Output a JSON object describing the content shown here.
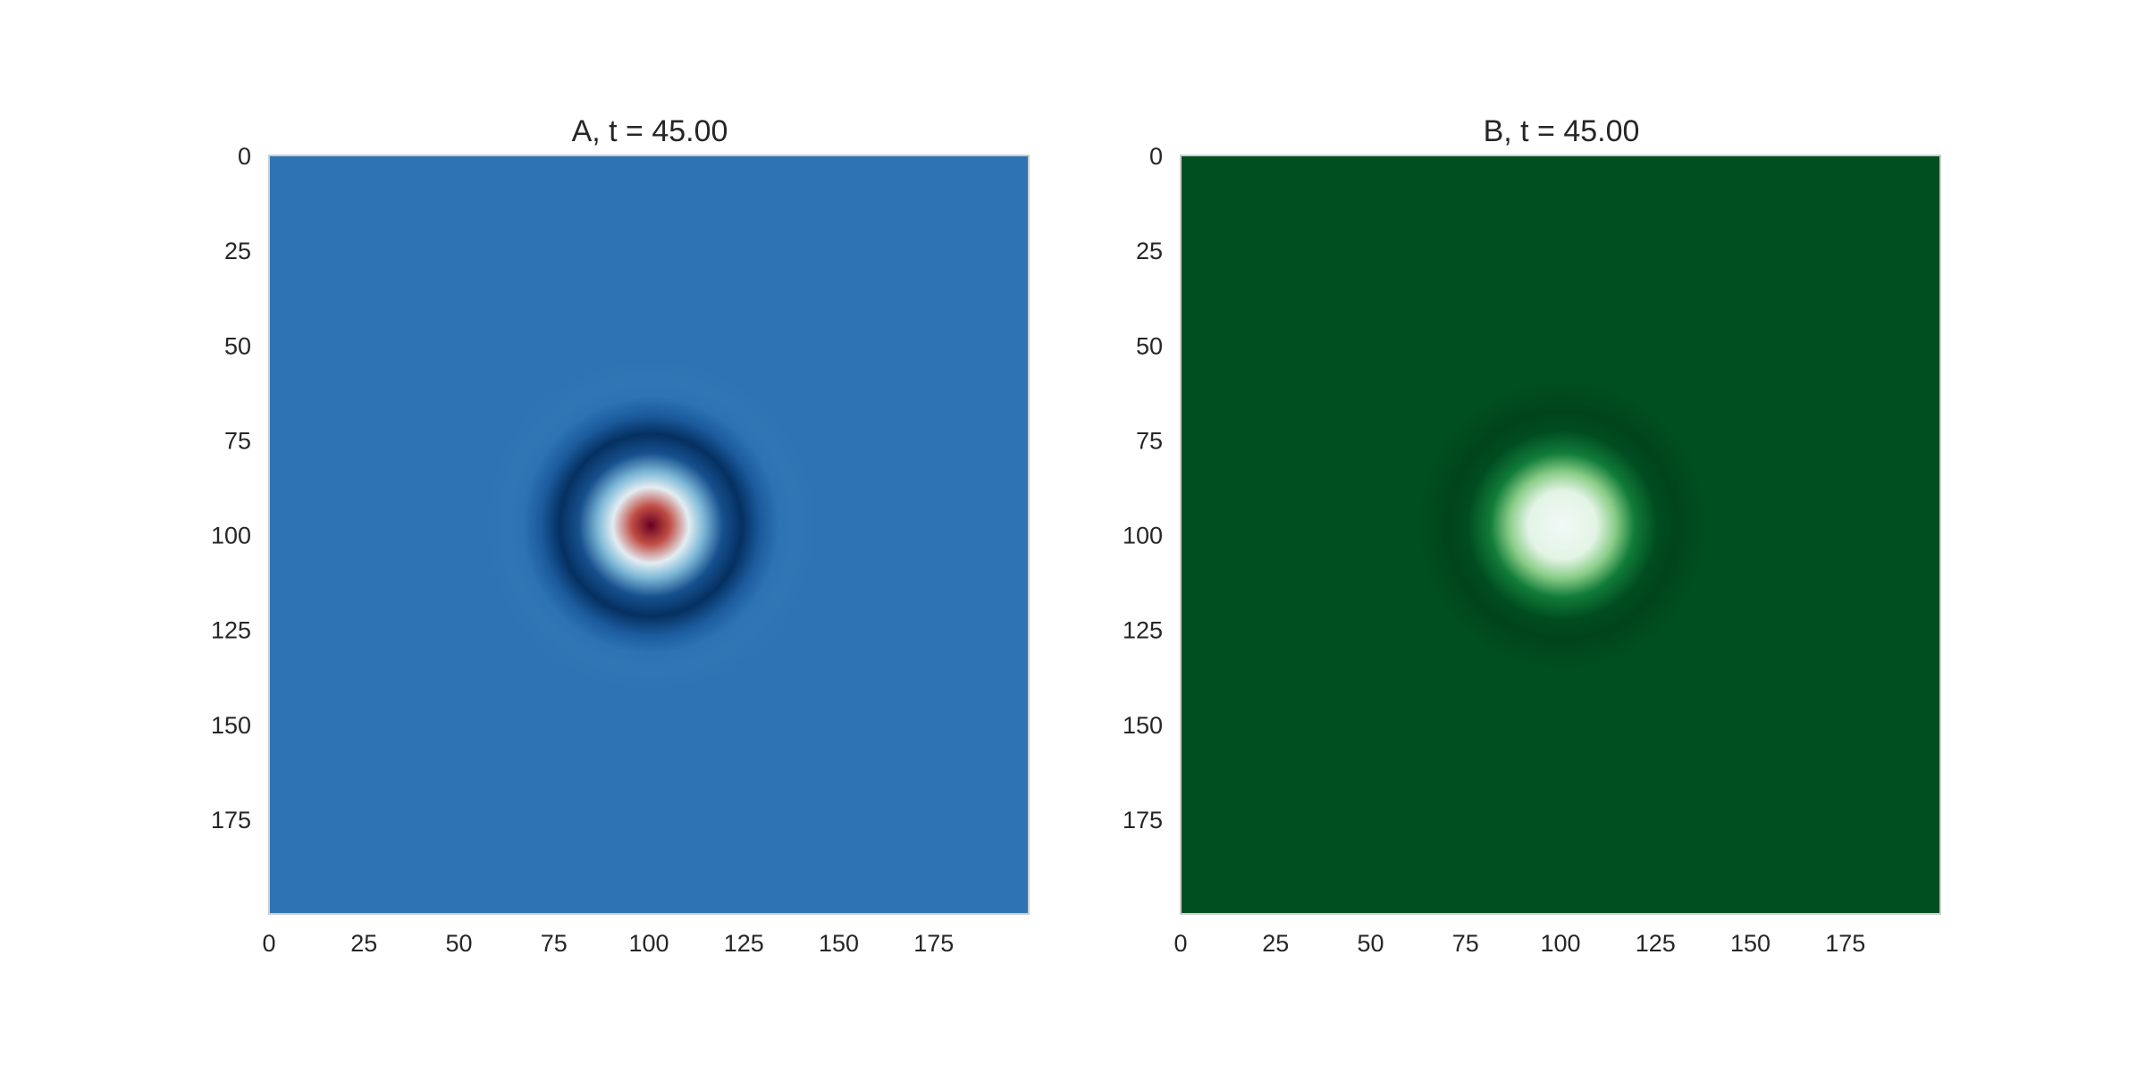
{
  "chart_data": [
    {
      "type": "heatmap",
      "title": "A, t = 45.00",
      "colormap": "RdBu_r",
      "grid_size": 200,
      "xlim": [
        0,
        199
      ],
      "ylim": [
        199,
        0
      ],
      "xticks": [
        "0",
        "25",
        "50",
        "75",
        "100",
        "125",
        "150",
        "175"
      ],
      "yticks": [
        "0",
        "25",
        "50",
        "75",
        "100",
        "125",
        "150",
        "175"
      ],
      "feature": {
        "shape": "concentric rings",
        "center": [
          100,
          97
        ],
        "profile": [
          {
            "r": 0,
            "level": 1.0
          },
          {
            "r": 5,
            "level": 0.92
          },
          {
            "r": 10,
            "level": 0.62
          },
          {
            "r": 14,
            "level": 0.46
          },
          {
            "r": 19,
            "level": 0.06
          },
          {
            "r": 24,
            "level": 0.0
          },
          {
            "r": 29,
            "level": 0.08
          },
          {
            "r": 34,
            "level": 0.19
          },
          {
            "r": 38,
            "level": 0.205
          },
          {
            "r": 45,
            "level": 0.19
          }
        ],
        "background_level": 0.19
      },
      "grid": false,
      "legend": "none"
    },
    {
      "type": "heatmap",
      "title": "B, t = 45.00",
      "colormap": "Greens_r",
      "grid_size": 200,
      "xlim": [
        0,
        199
      ],
      "ylim": [
        199,
        0
      ],
      "xticks": [
        "0",
        "25",
        "50",
        "75",
        "100",
        "125",
        "150",
        "175"
      ],
      "yticks": [
        "0",
        "25",
        "50",
        "75",
        "100",
        "125",
        "150",
        "175"
      ],
      "feature": {
        "shape": "radial spot",
        "center": [
          100,
          97
        ],
        "profile": [
          {
            "r": 0,
            "level": 1.0
          },
          {
            "r": 9,
            "level": 0.95
          },
          {
            "r": 14,
            "level": 0.7
          },
          {
            "r": 19,
            "level": 0.35
          },
          {
            "r": 25,
            "level": 0.03
          },
          {
            "r": 30,
            "level": 0.0
          },
          {
            "r": 38,
            "level": 0.04
          },
          {
            "r": 50,
            "level": 0.04
          }
        ],
        "background_level": 0.04
      },
      "grid": false,
      "legend": "none"
    }
  ]
}
